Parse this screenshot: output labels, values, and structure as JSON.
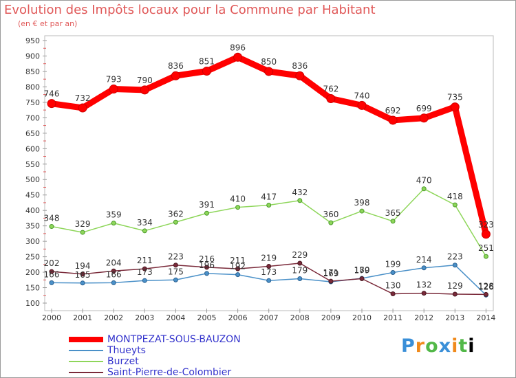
{
  "header": {
    "title": "Evolution des Impôts locaux pour la Commune par Habitant",
    "subtitle": "(en € et par an)"
  },
  "logo": {
    "letters": [
      "P",
      "r",
      "o",
      "x",
      "i",
      "t",
      "i"
    ]
  },
  "chart_data": {
    "type": "line",
    "title": "Evolution des Impôts locaux pour la Commune par Habitant",
    "subtitle": "(en € et par an)",
    "x": [
      "2000",
      "2001",
      "2002",
      "2003",
      "2004",
      "2005",
      "2006",
      "2007",
      "2008",
      "2009",
      "2010",
      "2011",
      "2012",
      "2013",
      "2014"
    ],
    "y_ticks": [
      100,
      150,
      200,
      250,
      300,
      350,
      400,
      450,
      500,
      550,
      600,
      650,
      700,
      750,
      800,
      850,
      900,
      950
    ],
    "ylim": [
      100,
      950
    ],
    "grid": false,
    "legend_position": "bottom-left",
    "series": [
      {
        "name": "MONTPEZAT-SOUS-BAUZON",
        "color": "#ff0000",
        "values": [
          746,
          732,
          793,
          790,
          836,
          851,
          896,
          850,
          836,
          762,
          740,
          692,
          699,
          735,
          323
        ],
        "labels": [
          "746",
          "732",
          "793",
          "790",
          "836",
          "851",
          "896",
          "850",
          "836",
          "762",
          "740",
          "692",
          "699",
          "735",
          "323"
        ]
      },
      {
        "name": "Thueyts",
        "color": "#4a90c8",
        "values": [
          166,
          165,
          166,
          173,
          175,
          196,
          192,
          173,
          179,
          169,
          180,
          199,
          214,
          223,
          126
        ],
        "labels": [
          "166",
          "165",
          "166",
          "173",
          "175",
          "196",
          "192",
          "173",
          "179",
          "169",
          "180",
          "199",
          "214",
          "223",
          "126"
        ]
      },
      {
        "name": "Burzet",
        "color": "#8ed65a",
        "values": [
          348,
          329,
          359,
          334,
          362,
          391,
          410,
          417,
          432,
          360,
          398,
          365,
          470,
          418,
          251
        ],
        "labels": [
          "348",
          "329",
          "359",
          "334",
          "362",
          "391",
          "410",
          "417",
          "432",
          "360",
          "398",
          "365",
          "470",
          "418",
          "251"
        ]
      },
      {
        "name": "Saint-Pierre-de-Colombier",
        "color": "#7a2a3a",
        "values": [
          202,
          194,
          204,
          211,
          223,
          216,
          211,
          219,
          229,
          171,
          179,
          130,
          132,
          129,
          128
        ],
        "labels": [
          "202",
          "194",
          "204",
          "211",
          "223",
          "216",
          "211",
          "219",
          "229",
          "171",
          "179",
          "130",
          "132",
          "129",
          "128"
        ]
      }
    ]
  }
}
